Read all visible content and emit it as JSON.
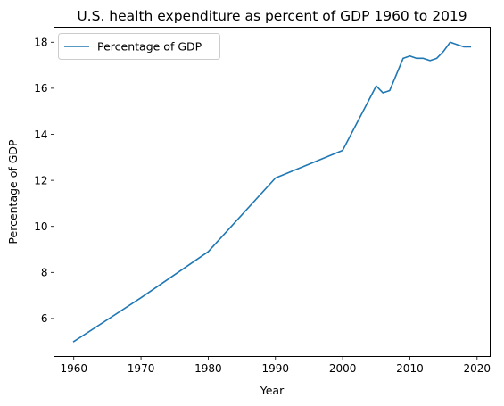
{
  "chart_data": {
    "type": "line",
    "title": "U.S. health expenditure as percent of GDP 1960 to 2019",
    "xlabel": "Year",
    "ylabel": "Percentage of GDP",
    "xlim": [
      1957.05,
      2021.95
    ],
    "ylim": [
      4.35,
      18.65
    ],
    "xticks": [
      1960,
      1970,
      1980,
      1990,
      2000,
      2010,
      2020
    ],
    "yticks": [
      6,
      8,
      10,
      12,
      14,
      16,
      18
    ],
    "grid": false,
    "legend": {
      "position": "upper-left",
      "entries": [
        "Percentage of GDP"
      ]
    },
    "series": [
      {
        "name": "Percentage of GDP",
        "color": "#1f77b4",
        "x": [
          1960,
          1970,
          1980,
          1990,
          2000,
          2005,
          2006,
          2007,
          2008,
          2009,
          2010,
          2011,
          2012,
          2013,
          2014,
          2015,
          2016,
          2017,
          2018,
          2019
        ],
        "y": [
          5.0,
          6.9,
          8.9,
          12.1,
          13.3,
          16.1,
          15.8,
          15.9,
          16.6,
          17.3,
          17.4,
          17.3,
          17.3,
          17.2,
          17.3,
          17.6,
          18.0,
          17.9,
          17.8,
          17.8
        ]
      }
    ]
  }
}
